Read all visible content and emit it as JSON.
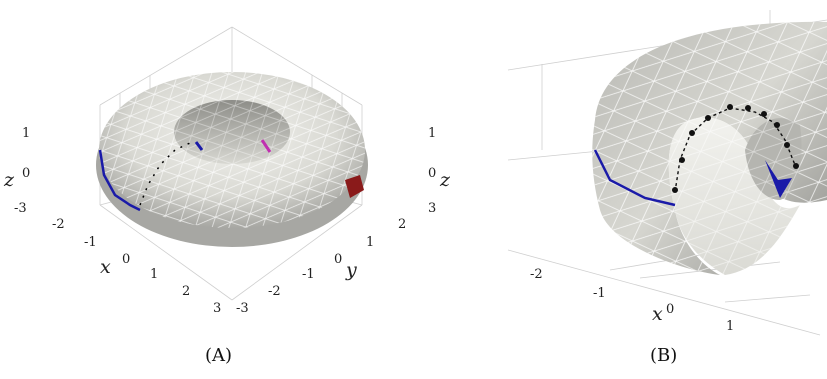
{
  "panel_a": {
    "axis_labels": {
      "x": "x",
      "y": "y",
      "z_left": "z",
      "z_right": "z"
    },
    "x_ticks": [
      "-2",
      "-1",
      "0",
      "1",
      "2",
      "3"
    ],
    "y_ticks": [
      "-3",
      "-2",
      "-1",
      "0",
      "1",
      "2",
      "3"
    ],
    "z_ticks_left": [
      "1",
      "0",
      "-3"
    ],
    "z_ticks_right": [
      "1",
      "0",
      "3"
    ],
    "caption": "(A)"
  },
  "panel_b": {
    "axis_labels": {
      "x": "x"
    },
    "x_ticks": [
      "-2",
      "-1",
      "0",
      "1"
    ],
    "caption": "(B)"
  },
  "colors": {
    "surface": "#dcdcd6",
    "mesh": "#ffffff",
    "boundary_blue": "#1a1aa8",
    "accent_red": "#8a1a1a",
    "accent_magenta": "#c030b0",
    "grid": "#cfcfcf"
  }
}
